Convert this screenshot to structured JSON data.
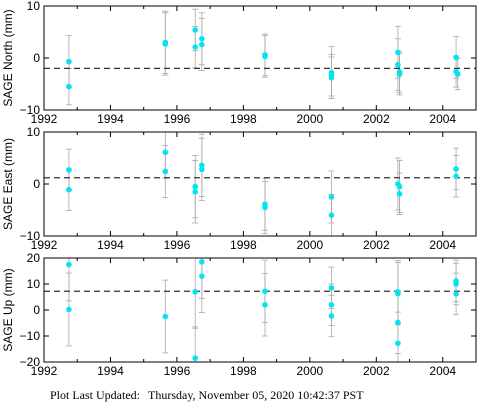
{
  "chart_data": [
    {
      "type": "scatter",
      "ylabel": "SAGE North (mm)",
      "xlim": [
        1992,
        2005
      ],
      "ylim": [
        -10,
        10
      ],
      "xticks": [
        "1992",
        "1994",
        "1996",
        "1998",
        "2000",
        "2002",
        "2004"
      ],
      "yticks": [
        "10",
        "0",
        "−10"
      ],
      "reference_line": -2.0,
      "point_color": "#00e5ee",
      "points": [
        {
          "x": 1992.75,
          "y": -0.7,
          "err": 5.0
        },
        {
          "x": 1992.75,
          "y": -5.5,
          "err": 3.5
        },
        {
          "x": 1995.65,
          "y": 3.0,
          "err": 6.0
        },
        {
          "x": 1995.65,
          "y": 2.7,
          "err": 6.0
        },
        {
          "x": 1996.55,
          "y": 5.4,
          "err": 4.0
        },
        {
          "x": 1996.55,
          "y": 2.1,
          "err": 4.0
        },
        {
          "x": 1996.75,
          "y": 3.7,
          "err": 5.0
        },
        {
          "x": 1996.75,
          "y": 2.6,
          "err": 5.0
        },
        {
          "x": 1998.65,
          "y": 0.6,
          "err": 4.0
        },
        {
          "x": 1998.65,
          "y": 0.3,
          "err": 4.0
        },
        {
          "x": 2000.65,
          "y": -2.8,
          "err": 5.0
        },
        {
          "x": 2000.65,
          "y": -3.3,
          "err": 4.0
        },
        {
          "x": 2000.65,
          "y": -3.8,
          "err": 4.0
        },
        {
          "x": 2002.65,
          "y": 1.1,
          "err": 5.0
        },
        {
          "x": 2002.65,
          "y": -1.3,
          "err": 5.0
        },
        {
          "x": 2002.7,
          "y": -2.7,
          "err": 4.0
        },
        {
          "x": 2002.7,
          "y": -3.1,
          "err": 4.0
        },
        {
          "x": 2004.4,
          "y": 0.1,
          "err": 4.0
        },
        {
          "x": 2004.4,
          "y": -2.6,
          "err": 3.0
        },
        {
          "x": 2004.45,
          "y": -3.1,
          "err": 3.0
        }
      ]
    },
    {
      "type": "scatter",
      "ylabel": "SAGE East (mm)",
      "xlim": [
        1992,
        2005
      ],
      "ylim": [
        -10,
        10
      ],
      "xticks": [
        "1992",
        "1994",
        "1996",
        "1998",
        "2000",
        "2002",
        "2004"
      ],
      "yticks": [
        "10",
        "0",
        "−10"
      ],
      "reference_line": 1.2,
      "point_color": "#00e5ee",
      "points": [
        {
          "x": 1992.75,
          "y": 2.7,
          "err": 4.0
        },
        {
          "x": 1992.75,
          "y": -1.1,
          "err": 4.0
        },
        {
          "x": 1995.65,
          "y": 6.1,
          "err": 5.0
        },
        {
          "x": 1995.65,
          "y": 2.4,
          "err": 5.0
        },
        {
          "x": 1996.55,
          "y": -0.5,
          "err": 6.0
        },
        {
          "x": 1996.55,
          "y": -1.5,
          "err": 6.0
        },
        {
          "x": 1996.75,
          "y": 3.6,
          "err": 6.0
        },
        {
          "x": 1996.75,
          "y": 2.8,
          "err": 6.0
        },
        {
          "x": 1998.65,
          "y": -3.9,
          "err": 5.0
        },
        {
          "x": 1998.65,
          "y": -4.5,
          "err": 5.0
        },
        {
          "x": 2000.65,
          "y": -2.5,
          "err": 5.0
        },
        {
          "x": 2000.65,
          "y": -6.0,
          "err": 4.0
        },
        {
          "x": 2002.65,
          "y": 0.0,
          "err": 5.0
        },
        {
          "x": 2002.7,
          "y": -0.5,
          "err": 5.0
        },
        {
          "x": 2002.7,
          "y": -1.9,
          "err": 4.0
        },
        {
          "x": 2004.4,
          "y": 2.9,
          "err": 4.0
        },
        {
          "x": 2004.4,
          "y": 1.5,
          "err": 4.0
        }
      ]
    },
    {
      "type": "scatter",
      "ylabel": "SAGE Up (mm)",
      "xlim": [
        1992,
        2005
      ],
      "ylim": [
        -20,
        20
      ],
      "xticks": [
        "1992",
        "1994",
        "1996",
        "1998",
        "2000",
        "2002",
        "2004"
      ],
      "yticks": [
        "20",
        "10",
        "0",
        "−10",
        "−20"
      ],
      "reference_line": 7.2,
      "point_color": "#00e5ee",
      "points": [
        {
          "x": 1992.75,
          "y": 17.5,
          "err": 14.0
        },
        {
          "x": 1992.75,
          "y": 0.2,
          "err": 14.0
        },
        {
          "x": 1995.65,
          "y": -2.5,
          "err": 14.0
        },
        {
          "x": 1996.55,
          "y": 7.0,
          "err": 14.0
        },
        {
          "x": 1996.55,
          "y": -18.5,
          "err": 12.0
        },
        {
          "x": 1996.75,
          "y": 18.5,
          "err": 14.0
        },
        {
          "x": 1996.75,
          "y": 13.0,
          "err": 14.0
        },
        {
          "x": 1998.65,
          "y": 7.2,
          "err": 12.0
        },
        {
          "x": 1998.65,
          "y": 2.0,
          "err": 12.0
        },
        {
          "x": 2000.65,
          "y": 8.5,
          "err": 8.0
        },
        {
          "x": 2000.65,
          "y": 2.0,
          "err": 8.0
        },
        {
          "x": 2000.65,
          "y": -2.3,
          "err": 8.0
        },
        {
          "x": 2002.65,
          "y": 7.0,
          "err": 12.0
        },
        {
          "x": 2002.65,
          "y": 6.3,
          "err": 12.0
        },
        {
          "x": 2002.65,
          "y": -4.8,
          "err": 12.0
        },
        {
          "x": 2002.65,
          "y": -12.8,
          "err": 12.0
        },
        {
          "x": 2004.4,
          "y": 11.2,
          "err": 8.0
        },
        {
          "x": 2004.4,
          "y": 10.0,
          "err": 8.0
        },
        {
          "x": 2004.4,
          "y": 6.2,
          "err": 8.0
        }
      ]
    }
  ],
  "footer": {
    "label": "Plot Last Updated:",
    "timestamp": "Thursday, November 05, 2020 10:42:37 PST"
  }
}
